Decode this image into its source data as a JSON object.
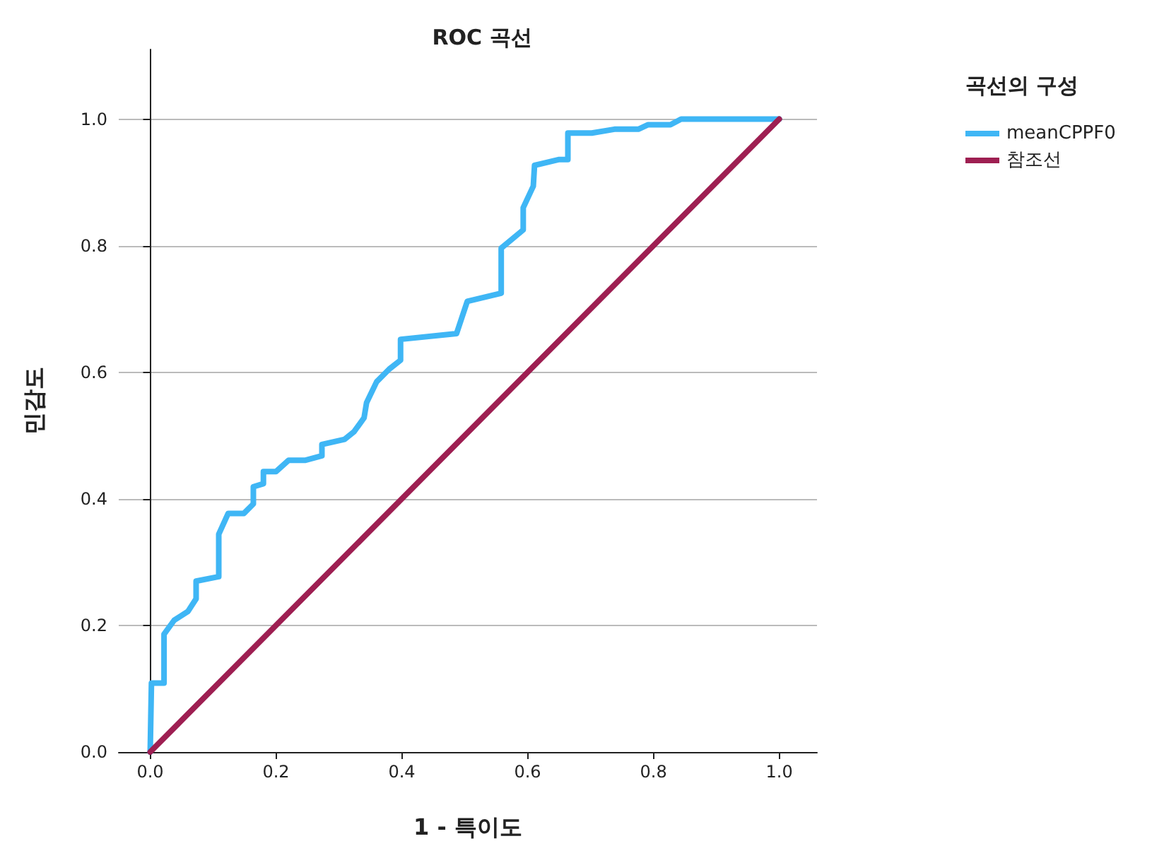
{
  "chart_data": {
    "type": "line",
    "title": "ROC 곡선",
    "xlabel": "1 - 특이도",
    "ylabel": "민감도",
    "legend_title": "곡선의 구성",
    "legend": "top right",
    "grid": "y",
    "marker": "none",
    "line_style": "solid",
    "xlim": [
      -0.05,
      1.06
    ],
    "ylim": [
      0,
      1.11
    ],
    "xticks": [
      {
        "value": 0,
        "label": "0.0"
      },
      {
        "value": 0.2,
        "label": "0.2"
      },
      {
        "value": 0.4,
        "label": "0.4"
      },
      {
        "value": 0.6,
        "label": "0.6"
      },
      {
        "value": 0.8,
        "label": "0.8"
      },
      {
        "value": 1,
        "label": "1.0"
      }
    ],
    "yticks": [
      {
        "value": 0,
        "label": "0.0"
      },
      {
        "value": 0.2,
        "label": "0.2"
      },
      {
        "value": 0.4,
        "label": "0.4"
      },
      {
        "value": 0.6,
        "label": "0.6"
      },
      {
        "value": 0.8,
        "label": "0.8"
      },
      {
        "value": 1,
        "label": "1.0"
      }
    ],
    "series": [
      {
        "name": "meanCPPF0",
        "color": "#3fb6f5",
        "x": [
          0,
          0.002,
          0.022,
          0.022,
          0.038,
          0.06,
          0.073,
          0.073,
          0.109,
          0.109,
          0.124,
          0.149,
          0.164,
          0.164,
          0.18,
          0.18,
          0.2,
          0.22,
          0.247,
          0.273,
          0.273,
          0.309,
          0.324,
          0.34,
          0.344,
          0.36,
          0.38,
          0.398,
          0.398,
          0.487,
          0.504,
          0.558,
          0.558,
          0.593,
          0.593,
          0.609,
          0.611,
          0.649,
          0.664,
          0.664,
          0.702,
          0.738,
          0.776,
          0.791,
          0.827,
          0.844,
          1
        ],
        "values": [
          0,
          0.109,
          0.109,
          0.186,
          0.208,
          0.222,
          0.242,
          0.27,
          0.277,
          0.344,
          0.377,
          0.377,
          0.392,
          0.419,
          0.424,
          0.443,
          0.443,
          0.461,
          0.461,
          0.468,
          0.486,
          0.494,
          0.506,
          0.528,
          0.552,
          0.585,
          0.605,
          0.619,
          0.652,
          0.661,
          0.712,
          0.725,
          0.796,
          0.825,
          0.86,
          0.894,
          0.927,
          0.936,
          0.936,
          0.978,
          0.978,
          0.984,
          0.984,
          0.991,
          0.991,
          1,
          1
        ]
      },
      {
        "name": "참조선",
        "color": "#9e1f52",
        "x": [
          0,
          1
        ],
        "values": [
          0,
          1
        ]
      }
    ]
  }
}
